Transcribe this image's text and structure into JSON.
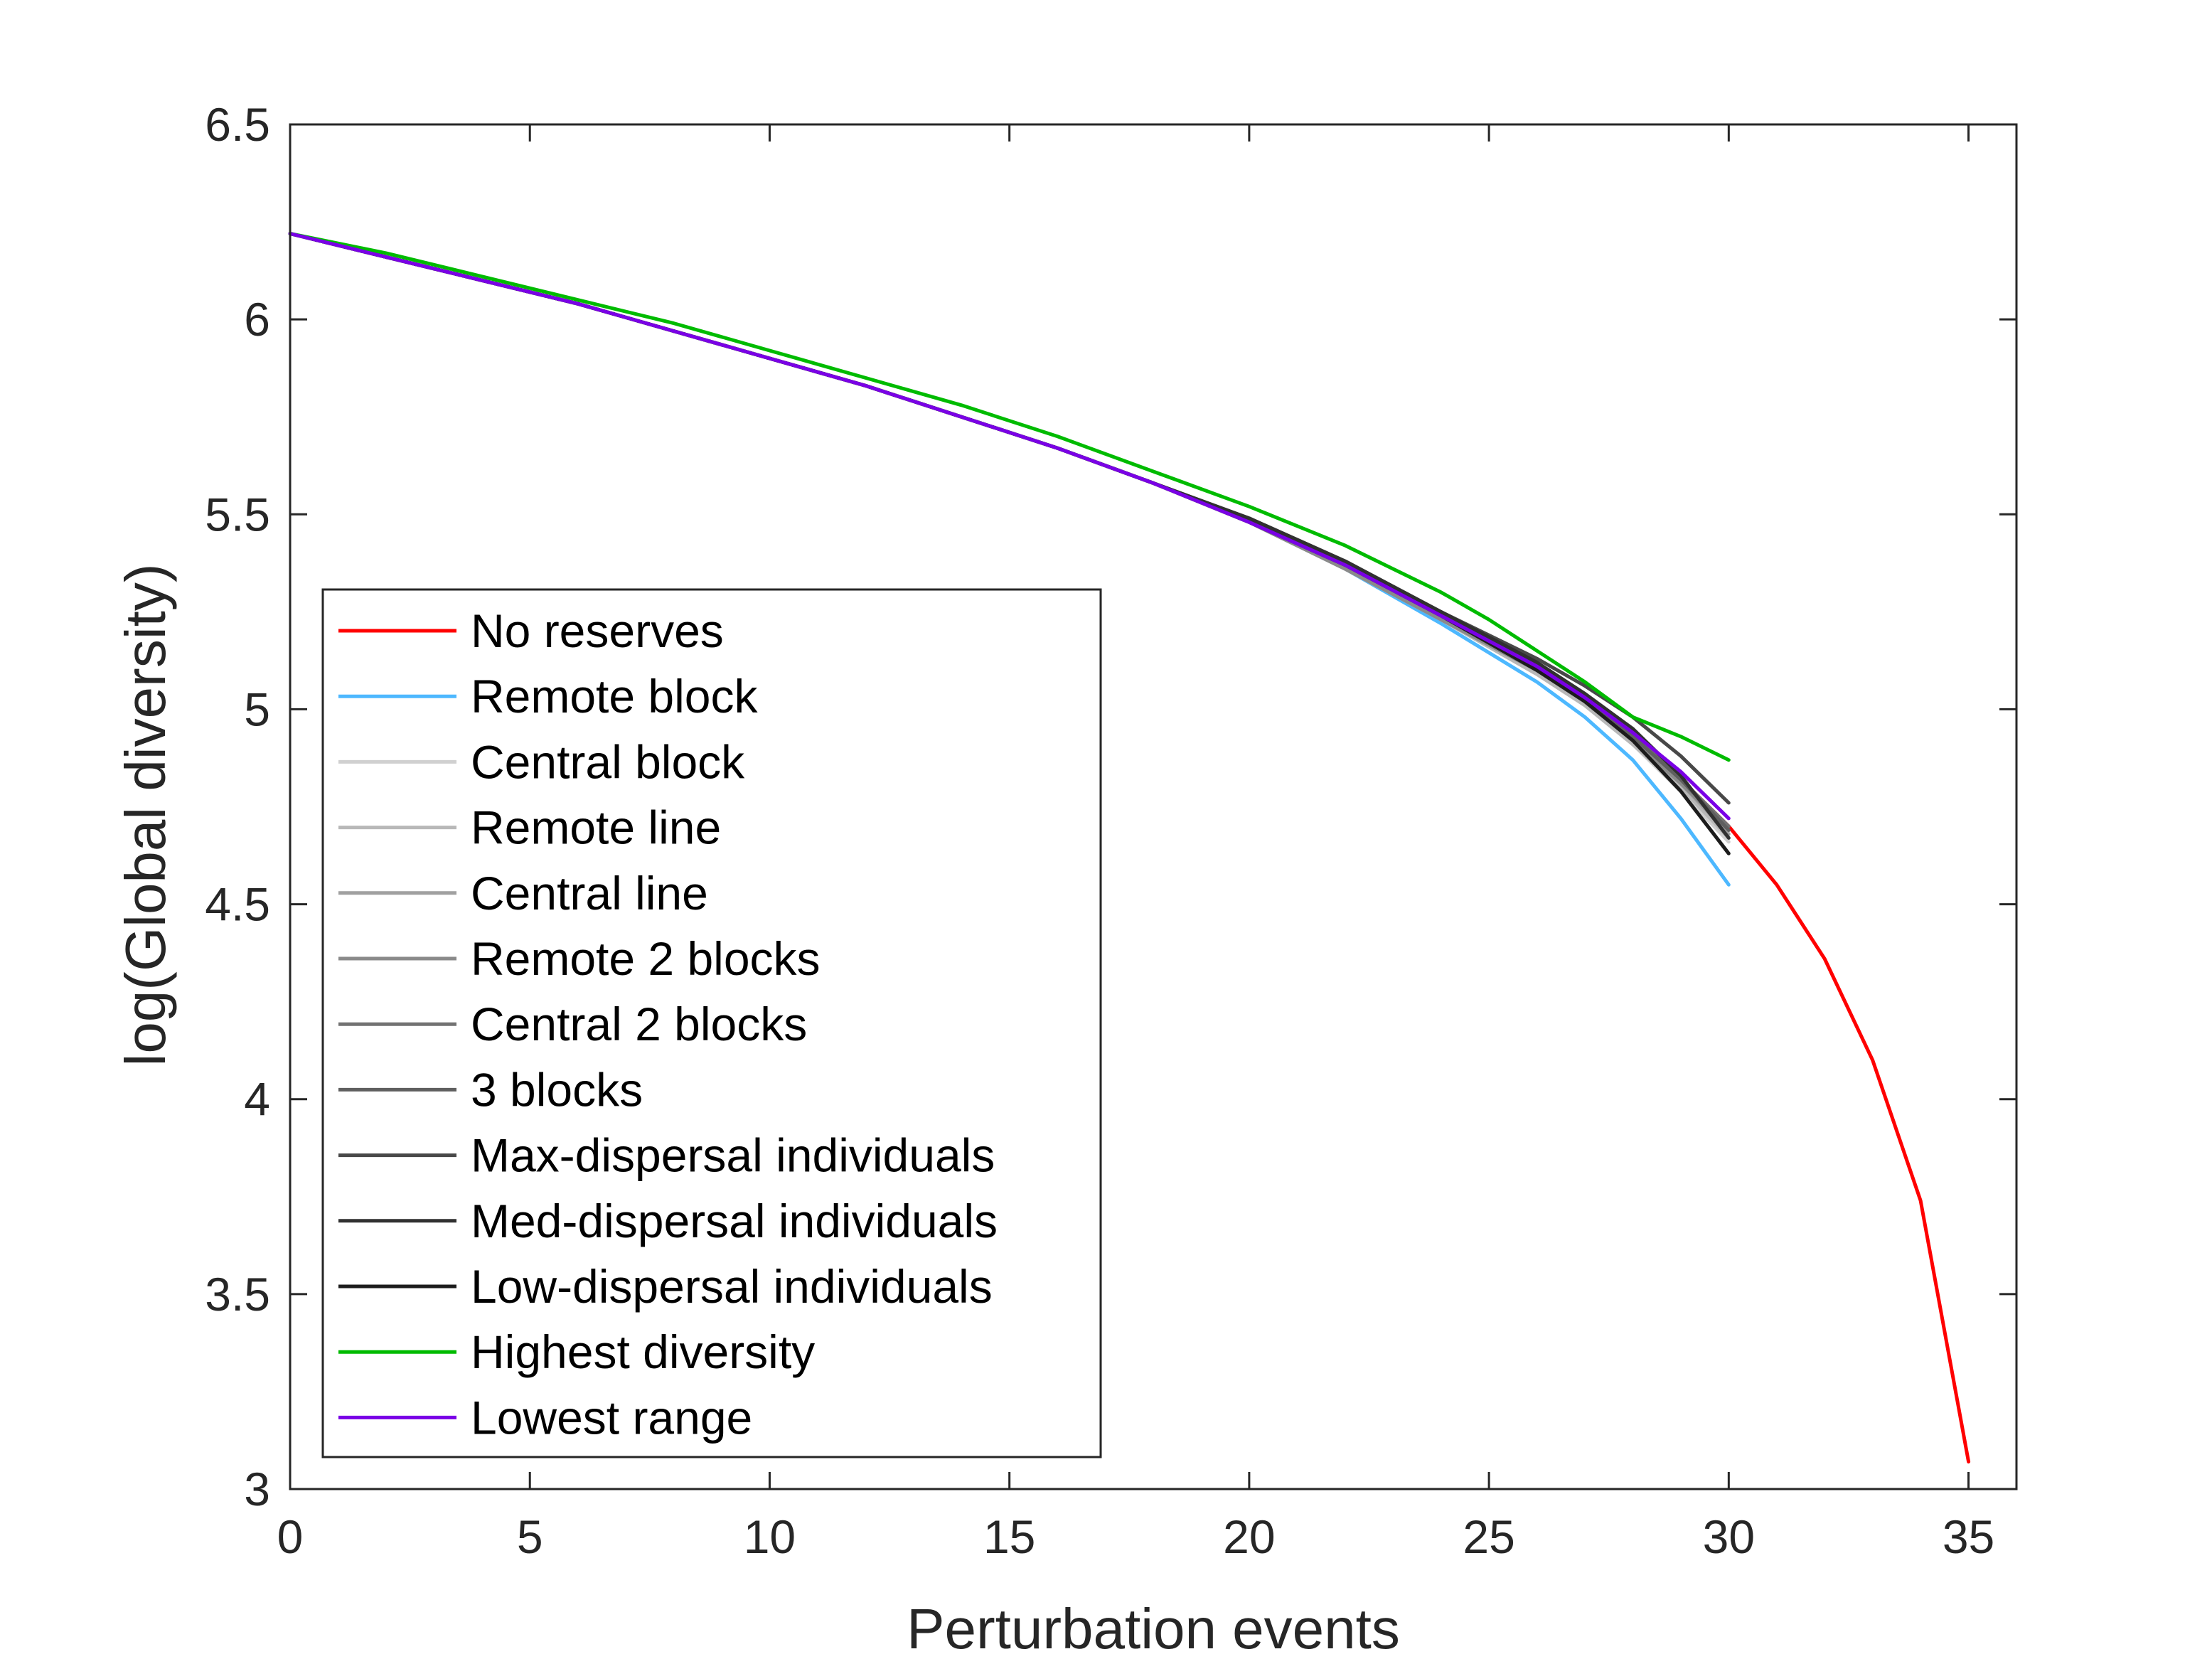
{
  "chart_data": {
    "type": "line",
    "title": "",
    "xlabel": "Perturbation events",
    "ylabel": "log(Global diversity)",
    "xlim": [
      0,
      36
    ],
    "ylim": [
      3,
      6.5
    ],
    "xticks": [
      0,
      5,
      10,
      15,
      20,
      25,
      30,
      35
    ],
    "yticks": [
      3,
      3.5,
      4,
      4.5,
      5,
      5.5,
      6,
      6.5
    ],
    "xtick_labels": [
      "0",
      "5",
      "10",
      "15",
      "20",
      "25",
      "30",
      "35"
    ],
    "ytick_labels": [
      "3",
      "3.5",
      "4",
      "4.5",
      "5",
      "5.5",
      "6",
      "6.5"
    ],
    "grid": false,
    "legend_position": "lower-left",
    "series": [
      {
        "name": "No reserves",
        "color": "#ff0000",
        "x": [
          0,
          2,
          4,
          6,
          8,
          10,
          12,
          14,
          16,
          18,
          20,
          22,
          24,
          26,
          27,
          28,
          29,
          30,
          31,
          32,
          33,
          34,
          35
        ],
        "y": [
          6.22,
          6.16,
          6.1,
          6.04,
          5.97,
          5.9,
          5.83,
          5.75,
          5.67,
          5.58,
          5.48,
          5.37,
          5.24,
          5.1,
          5.02,
          4.93,
          4.82,
          4.7,
          4.55,
          4.36,
          4.1,
          3.74,
          3.07
        ]
      },
      {
        "name": "Remote block",
        "color": "#4db8ff",
        "x": [
          0,
          2,
          4,
          6,
          8,
          10,
          12,
          14,
          16,
          18,
          20,
          22,
          24,
          26,
          27,
          28,
          29,
          30
        ],
        "y": [
          6.22,
          6.16,
          6.1,
          6.04,
          5.97,
          5.9,
          5.83,
          5.75,
          5.67,
          5.58,
          5.48,
          5.36,
          5.22,
          5.07,
          4.98,
          4.87,
          4.72,
          4.55
        ]
      },
      {
        "name": "Central block",
        "color": "#d0d0d0",
        "x": [
          0,
          2,
          4,
          6,
          8,
          10,
          12,
          14,
          16,
          18,
          20,
          22,
          24,
          26,
          27,
          28,
          29,
          30
        ],
        "y": [
          6.22,
          6.16,
          6.1,
          6.04,
          5.97,
          5.9,
          5.83,
          5.75,
          5.67,
          5.58,
          5.48,
          5.36,
          5.23,
          5.09,
          5.01,
          4.91,
          4.79,
          4.66
        ]
      },
      {
        "name": "Remote line",
        "color": "#b8b8b8",
        "x": [
          0,
          2,
          4,
          6,
          8,
          10,
          12,
          14,
          16,
          18,
          20,
          22,
          24,
          26,
          27,
          28,
          29,
          30
        ],
        "y": [
          6.22,
          6.16,
          6.1,
          6.04,
          5.97,
          5.9,
          5.83,
          5.75,
          5.67,
          5.58,
          5.48,
          5.36,
          5.23,
          5.09,
          5.01,
          4.91,
          4.8,
          4.67
        ]
      },
      {
        "name": "Central line",
        "color": "#a0a0a0",
        "x": [
          0,
          2,
          4,
          6,
          8,
          10,
          12,
          14,
          16,
          18,
          20,
          22,
          24,
          26,
          27,
          28,
          29,
          30
        ],
        "y": [
          6.22,
          6.16,
          6.1,
          6.04,
          5.97,
          5.9,
          5.83,
          5.75,
          5.67,
          5.58,
          5.48,
          5.36,
          5.23,
          5.1,
          5.02,
          4.92,
          4.81,
          4.68
        ]
      },
      {
        "name": "Remote 2 blocks",
        "color": "#8a8a8a",
        "x": [
          0,
          2,
          4,
          6,
          8,
          10,
          12,
          14,
          16,
          18,
          20,
          22,
          24,
          26,
          27,
          28,
          29,
          30
        ],
        "y": [
          6.22,
          6.16,
          6.1,
          6.04,
          5.97,
          5.9,
          5.83,
          5.75,
          5.67,
          5.58,
          5.48,
          5.36,
          5.23,
          5.1,
          5.02,
          4.92,
          4.81,
          4.69
        ]
      },
      {
        "name": "Central 2 blocks",
        "color": "#727272",
        "x": [
          0,
          2,
          4,
          6,
          8,
          10,
          12,
          14,
          16,
          18,
          20,
          22,
          24,
          26,
          27,
          28,
          29,
          30
        ],
        "y": [
          6.22,
          6.16,
          6.1,
          6.04,
          5.97,
          5.9,
          5.83,
          5.75,
          5.67,
          5.58,
          5.48,
          5.37,
          5.24,
          5.11,
          5.03,
          4.94,
          4.82,
          4.7
        ]
      },
      {
        "name": "3 blocks",
        "color": "#5f5f5f",
        "x": [
          0,
          2,
          4,
          6,
          8,
          10,
          12,
          14,
          16,
          18,
          20,
          22,
          24,
          26,
          27,
          28,
          29,
          30
        ],
        "y": [
          6.22,
          6.16,
          6.1,
          6.04,
          5.97,
          5.9,
          5.83,
          5.75,
          5.67,
          5.58,
          5.48,
          5.37,
          5.24,
          5.11,
          5.03,
          4.93,
          4.82,
          4.69
        ]
      },
      {
        "name": "Max-dispersal individuals",
        "color": "#484848",
        "x": [
          0,
          2,
          4,
          6,
          8,
          10,
          12,
          14,
          16,
          18,
          20,
          22,
          24,
          26,
          27,
          28,
          29,
          30
        ],
        "y": [
          6.22,
          6.16,
          6.1,
          6.04,
          5.97,
          5.9,
          5.83,
          5.75,
          5.67,
          5.58,
          5.49,
          5.38,
          5.25,
          5.13,
          5.06,
          4.98,
          4.88,
          4.76
        ]
      },
      {
        "name": "Med-dispersal individuals",
        "color": "#303030",
        "x": [
          0,
          2,
          4,
          6,
          8,
          10,
          12,
          14,
          16,
          18,
          20,
          22,
          24,
          26,
          27,
          28,
          29,
          30
        ],
        "y": [
          6.22,
          6.16,
          6.1,
          6.04,
          5.97,
          5.9,
          5.83,
          5.75,
          5.67,
          5.58,
          5.49,
          5.38,
          5.25,
          5.12,
          5.04,
          4.95,
          4.83,
          4.67
        ]
      },
      {
        "name": "Low-dispersal individuals",
        "color": "#1c1c1c",
        "x": [
          0,
          2,
          4,
          6,
          8,
          10,
          12,
          14,
          16,
          18,
          20,
          22,
          24,
          26,
          27,
          28,
          29,
          30
        ],
        "y": [
          6.22,
          6.16,
          6.1,
          6.04,
          5.97,
          5.9,
          5.83,
          5.75,
          5.67,
          5.58,
          5.48,
          5.37,
          5.24,
          5.1,
          5.02,
          4.92,
          4.79,
          4.63
        ]
      },
      {
        "name": "Highest diversity",
        "color": "#00bb00",
        "x": [
          0,
          2,
          4,
          6,
          8,
          10,
          12,
          14,
          16,
          18,
          20,
          21,
          22,
          23,
          24,
          25,
          26,
          27,
          28,
          29,
          30
        ],
        "y": [
          6.22,
          6.17,
          6.11,
          6.05,
          5.99,
          5.92,
          5.85,
          5.78,
          5.7,
          5.61,
          5.52,
          5.47,
          5.42,
          5.36,
          5.3,
          5.23,
          5.15,
          5.07,
          4.98,
          4.93,
          4.87
        ]
      },
      {
        "name": "Lowest range",
        "color": "#7a00e6",
        "x": [
          0,
          2,
          4,
          6,
          8,
          10,
          12,
          14,
          16,
          18,
          20,
          22,
          24,
          26,
          27,
          28,
          29,
          30
        ],
        "y": [
          6.22,
          6.16,
          6.1,
          6.04,
          5.97,
          5.9,
          5.83,
          5.75,
          5.67,
          5.58,
          5.48,
          5.37,
          5.24,
          5.11,
          5.03,
          4.94,
          4.84,
          4.72
        ]
      }
    ]
  }
}
